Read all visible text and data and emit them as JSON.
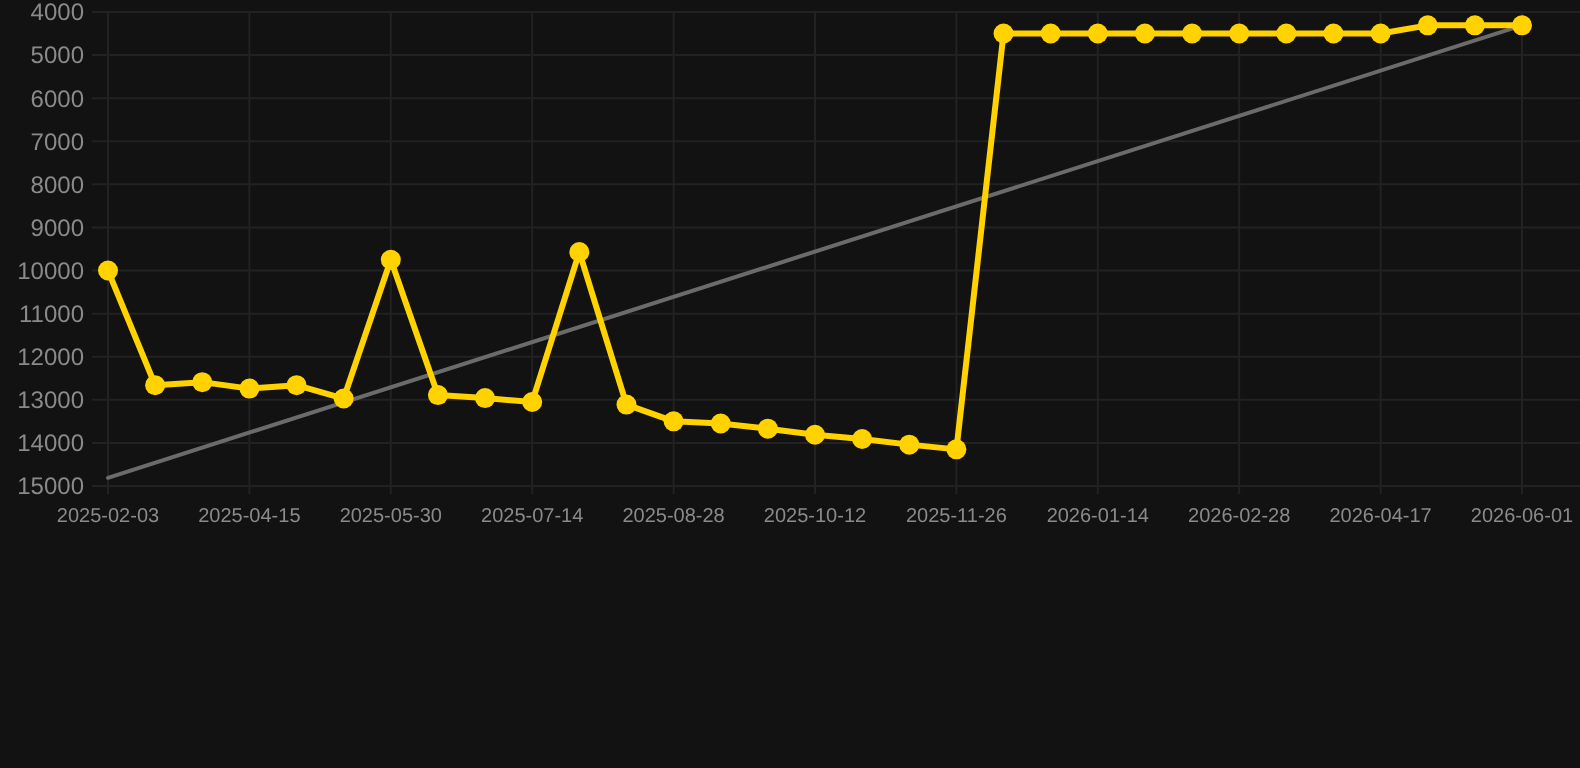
{
  "chart_data": {
    "type": "line",
    "categories": [
      "2025-02-03",
      null,
      null,
      "2025-04-15",
      null,
      null,
      "2025-05-30",
      null,
      null,
      "2025-07-14",
      null,
      null,
      "2025-08-28",
      null,
      null,
      "2025-10-12",
      null,
      null,
      "2025-11-26",
      null,
      null,
      "2026-01-14",
      null,
      null,
      "2026-02-28",
      null,
      null,
      "2026-04-17",
      null,
      null,
      "2026-06-01"
    ],
    "series": [
      {
        "color": "#ffd200",
        "marker": "circle",
        "values": [
          10000,
          12660,
          12590,
          12740,
          12660,
          12970,
          9750,
          12890,
          12960,
          13050,
          9570,
          13110,
          13500,
          13550,
          13670,
          13810,
          13910,
          14040,
          14150,
          4500,
          4500,
          4500,
          4500,
          4500,
          4500,
          4500,
          4500,
          4500,
          4310,
          4310,
          4310
        ]
      },
      {
        "type": "line",
        "color": "#6b6b6b",
        "marker": "none",
        "values": [
          14810,
          null,
          null,
          null,
          null,
          null,
          null,
          null,
          null,
          null,
          null,
          null,
          null,
          null,
          null,
          null,
          null,
          null,
          null,
          null,
          null,
          null,
          null,
          null,
          null,
          null,
          null,
          null,
          null,
          null,
          4310
        ]
      }
    ],
    "ylim": [
      15000,
      4000
    ],
    "yticks": [
      4000,
      5000,
      6000,
      7000,
      8000,
      9000,
      10000,
      11000,
      12000,
      13000,
      14000,
      15000
    ],
    "grid": true
  }
}
